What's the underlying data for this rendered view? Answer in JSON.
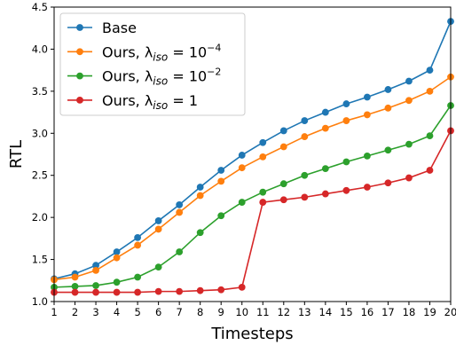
{
  "chart_data": {
    "type": "line",
    "title": "",
    "xlabel": "Timesteps",
    "ylabel": "RTL",
    "xlim": [
      1,
      20
    ],
    "ylim": [
      1.0,
      4.5
    ],
    "x": [
      1,
      2,
      3,
      4,
      5,
      6,
      7,
      8,
      9,
      10,
      11,
      12,
      13,
      14,
      15,
      16,
      17,
      18,
      19,
      20
    ],
    "x_ticks": [
      "1",
      "2",
      "3",
      "4",
      "5",
      "6",
      "7",
      "8",
      "9",
      "10",
      "11",
      "12",
      "13",
      "14",
      "15",
      "16",
      "17",
      "18",
      "19",
      "20"
    ],
    "y_ticks": [
      "1.0",
      "1.5",
      "2.0",
      "2.5",
      "3.0",
      "3.5",
      "4.0",
      "4.5"
    ],
    "y_tick_values": [
      1.0,
      1.5,
      2.0,
      2.5,
      3.0,
      3.5,
      4.0,
      4.5
    ],
    "grid": false,
    "legend_position": "top-left",
    "series": [
      {
        "name": "Base",
        "label_main": "Base",
        "label_sub": "",
        "label_sup": "",
        "color": "#1f77b4",
        "values": [
          1.27,
          1.33,
          1.43,
          1.59,
          1.76,
          1.96,
          2.15,
          2.36,
          2.56,
          2.74,
          2.89,
          3.03,
          3.15,
          3.25,
          3.35,
          3.43,
          3.52,
          3.62,
          3.75,
          4.33
        ]
      },
      {
        "name": "Ours, λiso = 10−4",
        "label_main": "Ours, λ",
        "label_sub": "iso",
        "label_eq": " = 10",
        "label_sup": "−4",
        "color": "#ff7f0e",
        "values": [
          1.26,
          1.29,
          1.37,
          1.52,
          1.67,
          1.86,
          2.06,
          2.26,
          2.43,
          2.59,
          2.72,
          2.84,
          2.96,
          3.06,
          3.15,
          3.22,
          3.3,
          3.39,
          3.5,
          3.67
        ]
      },
      {
        "name": "Ours, λiso = 10−2",
        "label_main": "Ours, λ",
        "label_sub": "iso",
        "label_eq": " = 10",
        "label_sup": "−2",
        "color": "#2ca02c",
        "values": [
          1.17,
          1.18,
          1.19,
          1.23,
          1.29,
          1.41,
          1.59,
          1.82,
          2.02,
          2.18,
          2.3,
          2.4,
          2.5,
          2.58,
          2.66,
          2.73,
          2.8,
          2.87,
          2.97,
          3.33
        ]
      },
      {
        "name": "Ours, λiso = 1",
        "label_main": "Ours, λ",
        "label_sub": "iso",
        "label_eq": " = 1",
        "label_sup": "",
        "color": "#d62728",
        "values": [
          1.11,
          1.11,
          1.11,
          1.11,
          1.11,
          1.12,
          1.12,
          1.13,
          1.14,
          1.17,
          2.18,
          2.21,
          2.24,
          2.28,
          2.32,
          2.36,
          2.41,
          2.47,
          2.56,
          3.03
        ]
      }
    ]
  }
}
